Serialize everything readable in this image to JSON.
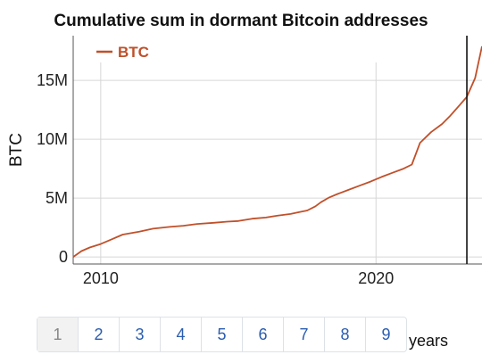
{
  "chart_data": {
    "type": "line",
    "title": "Cumulative sum in dormant Bitcoin addresses",
    "ylabel": "BTC",
    "xlabel": "",
    "x_ticks": [
      {
        "label": "2010",
        "value": 2010
      },
      {
        "label": "2020",
        "value": 2020
      }
    ],
    "y_ticks": [
      {
        "label": "0",
        "value": 0
      },
      {
        "label": "5M",
        "value": 5000000
      },
      {
        "label": "10M",
        "value": 10000000
      },
      {
        "label": "15M",
        "value": 15000000
      }
    ],
    "xlim": [
      2009.0,
      2023.85
    ],
    "ylim": [
      -600000,
      18800000
    ],
    "grid": true,
    "legend_position": "top-left",
    "marker_year": 2023.3,
    "series": [
      {
        "name": "BTC",
        "color": "#c0502a",
        "x": [
          2009.0,
          2009.3,
          2009.6,
          2010.0,
          2010.4,
          2010.8,
          2011.4,
          2011.9,
          2012.5,
          2013.0,
          2013.5,
          2014.1,
          2014.6,
          2015.0,
          2015.5,
          2016.0,
          2016.4,
          2016.9,
          2017.2,
          2017.5,
          2017.8,
          2018.0,
          2018.3,
          2018.6,
          2019.0,
          2019.4,
          2019.8,
          2020.2,
          2020.6,
          2021.0,
          2021.3,
          2021.6,
          2022.0,
          2022.4,
          2022.7,
          2023.0,
          2023.3,
          2023.6,
          2023.85
        ],
        "values": [
          0,
          500000,
          800000,
          1100000,
          1500000,
          1900000,
          2150000,
          2400000,
          2550000,
          2650000,
          2800000,
          2900000,
          3000000,
          3050000,
          3250000,
          3350000,
          3500000,
          3650000,
          3800000,
          3950000,
          4300000,
          4650000,
          5050000,
          5350000,
          5700000,
          6050000,
          6400000,
          6800000,
          7150000,
          7500000,
          7850000,
          9700000,
          10600000,
          11300000,
          12000000,
          12800000,
          13600000,
          15200000,
          17900000
        ]
      }
    ]
  },
  "pagination": {
    "pages": [
      "1",
      "2",
      "3",
      "4",
      "5",
      "6",
      "7",
      "8",
      "9"
    ],
    "active_index": 0,
    "unit_label": "years"
  }
}
